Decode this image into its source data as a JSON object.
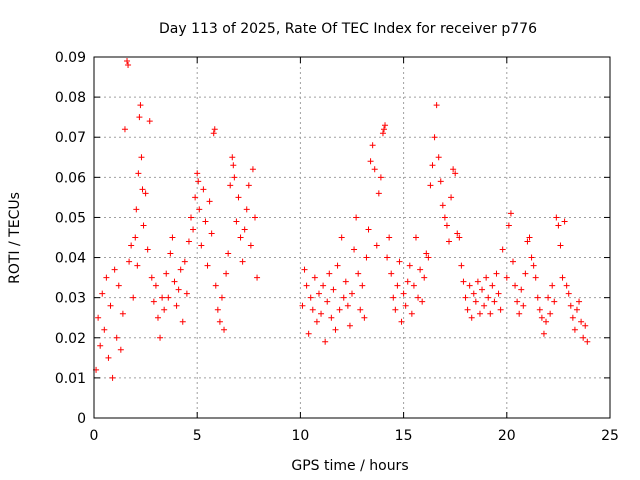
{
  "chart_data": {
    "type": "scatter",
    "title": "Day 113 of 2025, Rate Of TEC Index for receiver p776",
    "xlabel": "GPS time / hours",
    "ylabel": "ROTI / TECUs",
    "xlim": [
      0,
      25
    ],
    "ylim": [
      0,
      0.09
    ],
    "x_ticks": [
      0,
      5,
      10,
      15,
      20,
      25
    ],
    "y_ticks": [
      0,
      0.01,
      0.02,
      0.03,
      0.04,
      0.05,
      0.06,
      0.07,
      0.08,
      0.09
    ],
    "x_tick_labels": [
      "0",
      "5",
      "10",
      "15",
      "20",
      "25"
    ],
    "y_tick_labels": [
      "0",
      "0.01",
      "0.02",
      "0.03",
      "0.04",
      "0.05",
      "0.06",
      "0.07",
      "0.08",
      "0.09"
    ],
    "grid": true,
    "marker": "+",
    "color": "#ff0000",
    "data_gap_hours": [
      8.0,
      10.0
    ],
    "series": [
      {
        "name": "ROTI",
        "points": [
          [
            0.1,
            0.012
          ],
          [
            0.2,
            0.025
          ],
          [
            0.3,
            0.018
          ],
          [
            0.4,
            0.031
          ],
          [
            0.5,
            0.022
          ],
          [
            0.6,
            0.035
          ],
          [
            0.7,
            0.015
          ],
          [
            0.8,
            0.028
          ],
          [
            0.9,
            0.01
          ],
          [
            1.0,
            0.037
          ],
          [
            1.1,
            0.02
          ],
          [
            1.2,
            0.033
          ],
          [
            1.3,
            0.017
          ],
          [
            1.4,
            0.026
          ],
          [
            1.5,
            0.072
          ],
          [
            1.6,
            0.089
          ],
          [
            1.65,
            0.088
          ],
          [
            1.7,
            0.039
          ],
          [
            1.8,
            0.043
          ],
          [
            1.9,
            0.03
          ],
          [
            2.0,
            0.045
          ],
          [
            2.05,
            0.052
          ],
          [
            2.1,
            0.038
          ],
          [
            2.15,
            0.061
          ],
          [
            2.2,
            0.075
          ],
          [
            2.25,
            0.078
          ],
          [
            2.3,
            0.065
          ],
          [
            2.35,
            0.057
          ],
          [
            2.4,
            0.048
          ],
          [
            2.5,
            0.056
          ],
          [
            2.6,
            0.042
          ],
          [
            2.7,
            0.074
          ],
          [
            2.8,
            0.035
          ],
          [
            2.9,
            0.029
          ],
          [
            3.0,
            0.033
          ],
          [
            3.1,
            0.025
          ],
          [
            3.2,
            0.02
          ],
          [
            3.3,
            0.03
          ],
          [
            3.4,
            0.027
          ],
          [
            3.5,
            0.036
          ],
          [
            3.6,
            0.03
          ],
          [
            3.7,
            0.041
          ],
          [
            3.8,
            0.045
          ],
          [
            3.9,
            0.034
          ],
          [
            4.0,
            0.028
          ],
          [
            4.1,
            0.032
          ],
          [
            4.2,
            0.037
          ],
          [
            4.3,
            0.024
          ],
          [
            4.4,
            0.039
          ],
          [
            4.5,
            0.031
          ],
          [
            4.6,
            0.044
          ],
          [
            4.7,
            0.05
          ],
          [
            4.8,
            0.047
          ],
          [
            4.9,
            0.055
          ],
          [
            5.0,
            0.061
          ],
          [
            5.05,
            0.059
          ],
          [
            5.1,
            0.052
          ],
          [
            5.2,
            0.043
          ],
          [
            5.3,
            0.057
          ],
          [
            5.4,
            0.049
          ],
          [
            5.5,
            0.038
          ],
          [
            5.6,
            0.054
          ],
          [
            5.7,
            0.046
          ],
          [
            5.8,
            0.071
          ],
          [
            5.85,
            0.072
          ],
          [
            5.9,
            0.033
          ],
          [
            6.0,
            0.027
          ],
          [
            6.1,
            0.024
          ],
          [
            6.2,
            0.03
          ],
          [
            6.3,
            0.022
          ],
          [
            6.4,
            0.036
          ],
          [
            6.5,
            0.041
          ],
          [
            6.6,
            0.058
          ],
          [
            6.7,
            0.065
          ],
          [
            6.75,
            0.063
          ],
          [
            6.8,
            0.06
          ],
          [
            6.9,
            0.049
          ],
          [
            7.0,
            0.055
          ],
          [
            7.1,
            0.045
          ],
          [
            7.2,
            0.039
          ],
          [
            7.3,
            0.047
          ],
          [
            7.4,
            0.052
          ],
          [
            7.5,
            0.058
          ],
          [
            7.6,
            0.043
          ],
          [
            7.7,
            0.062
          ],
          [
            7.8,
            0.05
          ],
          [
            7.9,
            0.035
          ],
          [
            10.1,
            0.028
          ],
          [
            10.2,
            0.037
          ],
          [
            10.3,
            0.033
          ],
          [
            10.4,
            0.021
          ],
          [
            10.5,
            0.03
          ],
          [
            10.6,
            0.027
          ],
          [
            10.7,
            0.035
          ],
          [
            10.8,
            0.024
          ],
          [
            10.9,
            0.031
          ],
          [
            11.0,
            0.026
          ],
          [
            11.1,
            0.033
          ],
          [
            11.2,
            0.019
          ],
          [
            11.3,
            0.029
          ],
          [
            11.4,
            0.036
          ],
          [
            11.5,
            0.025
          ],
          [
            11.6,
            0.032
          ],
          [
            11.7,
            0.022
          ],
          [
            11.8,
            0.038
          ],
          [
            11.9,
            0.027
          ],
          [
            12.0,
            0.045
          ],
          [
            12.1,
            0.03
          ],
          [
            12.2,
            0.034
          ],
          [
            12.3,
            0.028
          ],
          [
            12.4,
            0.023
          ],
          [
            12.5,
            0.031
          ],
          [
            12.6,
            0.042
          ],
          [
            12.7,
            0.05
          ],
          [
            12.8,
            0.036
          ],
          [
            12.9,
            0.027
          ],
          [
            13.0,
            0.033
          ],
          [
            13.1,
            0.025
          ],
          [
            13.2,
            0.04
          ],
          [
            13.3,
            0.047
          ],
          [
            13.4,
            0.064
          ],
          [
            13.5,
            0.068
          ],
          [
            13.6,
            0.062
          ],
          [
            13.7,
            0.043
          ],
          [
            13.8,
            0.056
          ],
          [
            13.9,
            0.06
          ],
          [
            14.0,
            0.071
          ],
          [
            14.05,
            0.072
          ],
          [
            14.1,
            0.073
          ],
          [
            14.2,
            0.04
          ],
          [
            14.3,
            0.045
          ],
          [
            14.4,
            0.036
          ],
          [
            14.5,
            0.03
          ],
          [
            14.6,
            0.027
          ],
          [
            14.7,
            0.033
          ],
          [
            14.8,
            0.039
          ],
          [
            14.9,
            0.024
          ],
          [
            15.0,
            0.031
          ],
          [
            15.1,
            0.028
          ],
          [
            15.2,
            0.034
          ],
          [
            15.3,
            0.038
          ],
          [
            15.4,
            0.026
          ],
          [
            15.5,
            0.033
          ],
          [
            15.6,
            0.045
          ],
          [
            15.7,
            0.03
          ],
          [
            15.8,
            0.037
          ],
          [
            15.9,
            0.029
          ],
          [
            16.0,
            0.035
          ],
          [
            16.1,
            0.041
          ],
          [
            16.2,
            0.04
          ],
          [
            16.3,
            0.058
          ],
          [
            16.4,
            0.063
          ],
          [
            16.5,
            0.07
          ],
          [
            16.6,
            0.078
          ],
          [
            16.7,
            0.065
          ],
          [
            16.8,
            0.059
          ],
          [
            16.9,
            0.053
          ],
          [
            17.0,
            0.05
          ],
          [
            17.1,
            0.048
          ],
          [
            17.2,
            0.044
          ],
          [
            17.3,
            0.055
          ],
          [
            17.4,
            0.062
          ],
          [
            17.5,
            0.061
          ],
          [
            17.6,
            0.046
          ],
          [
            17.7,
            0.045
          ],
          [
            17.8,
            0.038
          ],
          [
            17.9,
            0.034
          ],
          [
            18.0,
            0.03
          ],
          [
            18.1,
            0.027
          ],
          [
            18.2,
            0.033
          ],
          [
            18.3,
            0.025
          ],
          [
            18.4,
            0.031
          ],
          [
            18.5,
            0.029
          ],
          [
            18.6,
            0.034
          ],
          [
            18.7,
            0.026
          ],
          [
            18.8,
            0.032
          ],
          [
            18.9,
            0.028
          ],
          [
            19.0,
            0.035
          ],
          [
            19.1,
            0.03
          ],
          [
            19.2,
            0.026
          ],
          [
            19.3,
            0.033
          ],
          [
            19.4,
            0.029
          ],
          [
            19.5,
            0.036
          ],
          [
            19.6,
            0.031
          ],
          [
            19.7,
            0.027
          ],
          [
            19.8,
            0.042
          ],
          [
            20.0,
            0.035
          ],
          [
            20.1,
            0.048
          ],
          [
            20.2,
            0.051
          ],
          [
            20.3,
            0.039
          ],
          [
            20.4,
            0.033
          ],
          [
            20.5,
            0.029
          ],
          [
            20.6,
            0.026
          ],
          [
            20.7,
            0.032
          ],
          [
            20.8,
            0.028
          ],
          [
            20.9,
            0.036
          ],
          [
            21.0,
            0.044
          ],
          [
            21.1,
            0.045
          ],
          [
            21.2,
            0.04
          ],
          [
            21.3,
            0.038
          ],
          [
            21.4,
            0.035
          ],
          [
            21.5,
            0.03
          ],
          [
            21.6,
            0.027
          ],
          [
            21.7,
            0.025
          ],
          [
            21.8,
            0.021
          ],
          [
            21.9,
            0.024
          ],
          [
            22.0,
            0.03
          ],
          [
            22.1,
            0.026
          ],
          [
            22.2,
            0.033
          ],
          [
            22.3,
            0.029
          ],
          [
            22.4,
            0.05
          ],
          [
            22.5,
            0.048
          ],
          [
            22.6,
            0.043
          ],
          [
            22.7,
            0.035
          ],
          [
            22.8,
            0.049
          ],
          [
            22.9,
            0.033
          ],
          [
            23.0,
            0.031
          ],
          [
            23.1,
            0.028
          ],
          [
            23.2,
            0.025
          ],
          [
            23.3,
            0.022
          ],
          [
            23.4,
            0.027
          ],
          [
            23.5,
            0.029
          ],
          [
            23.6,
            0.024
          ],
          [
            23.7,
            0.02
          ],
          [
            23.8,
            0.023
          ],
          [
            23.9,
            0.019
          ]
        ]
      }
    ]
  }
}
